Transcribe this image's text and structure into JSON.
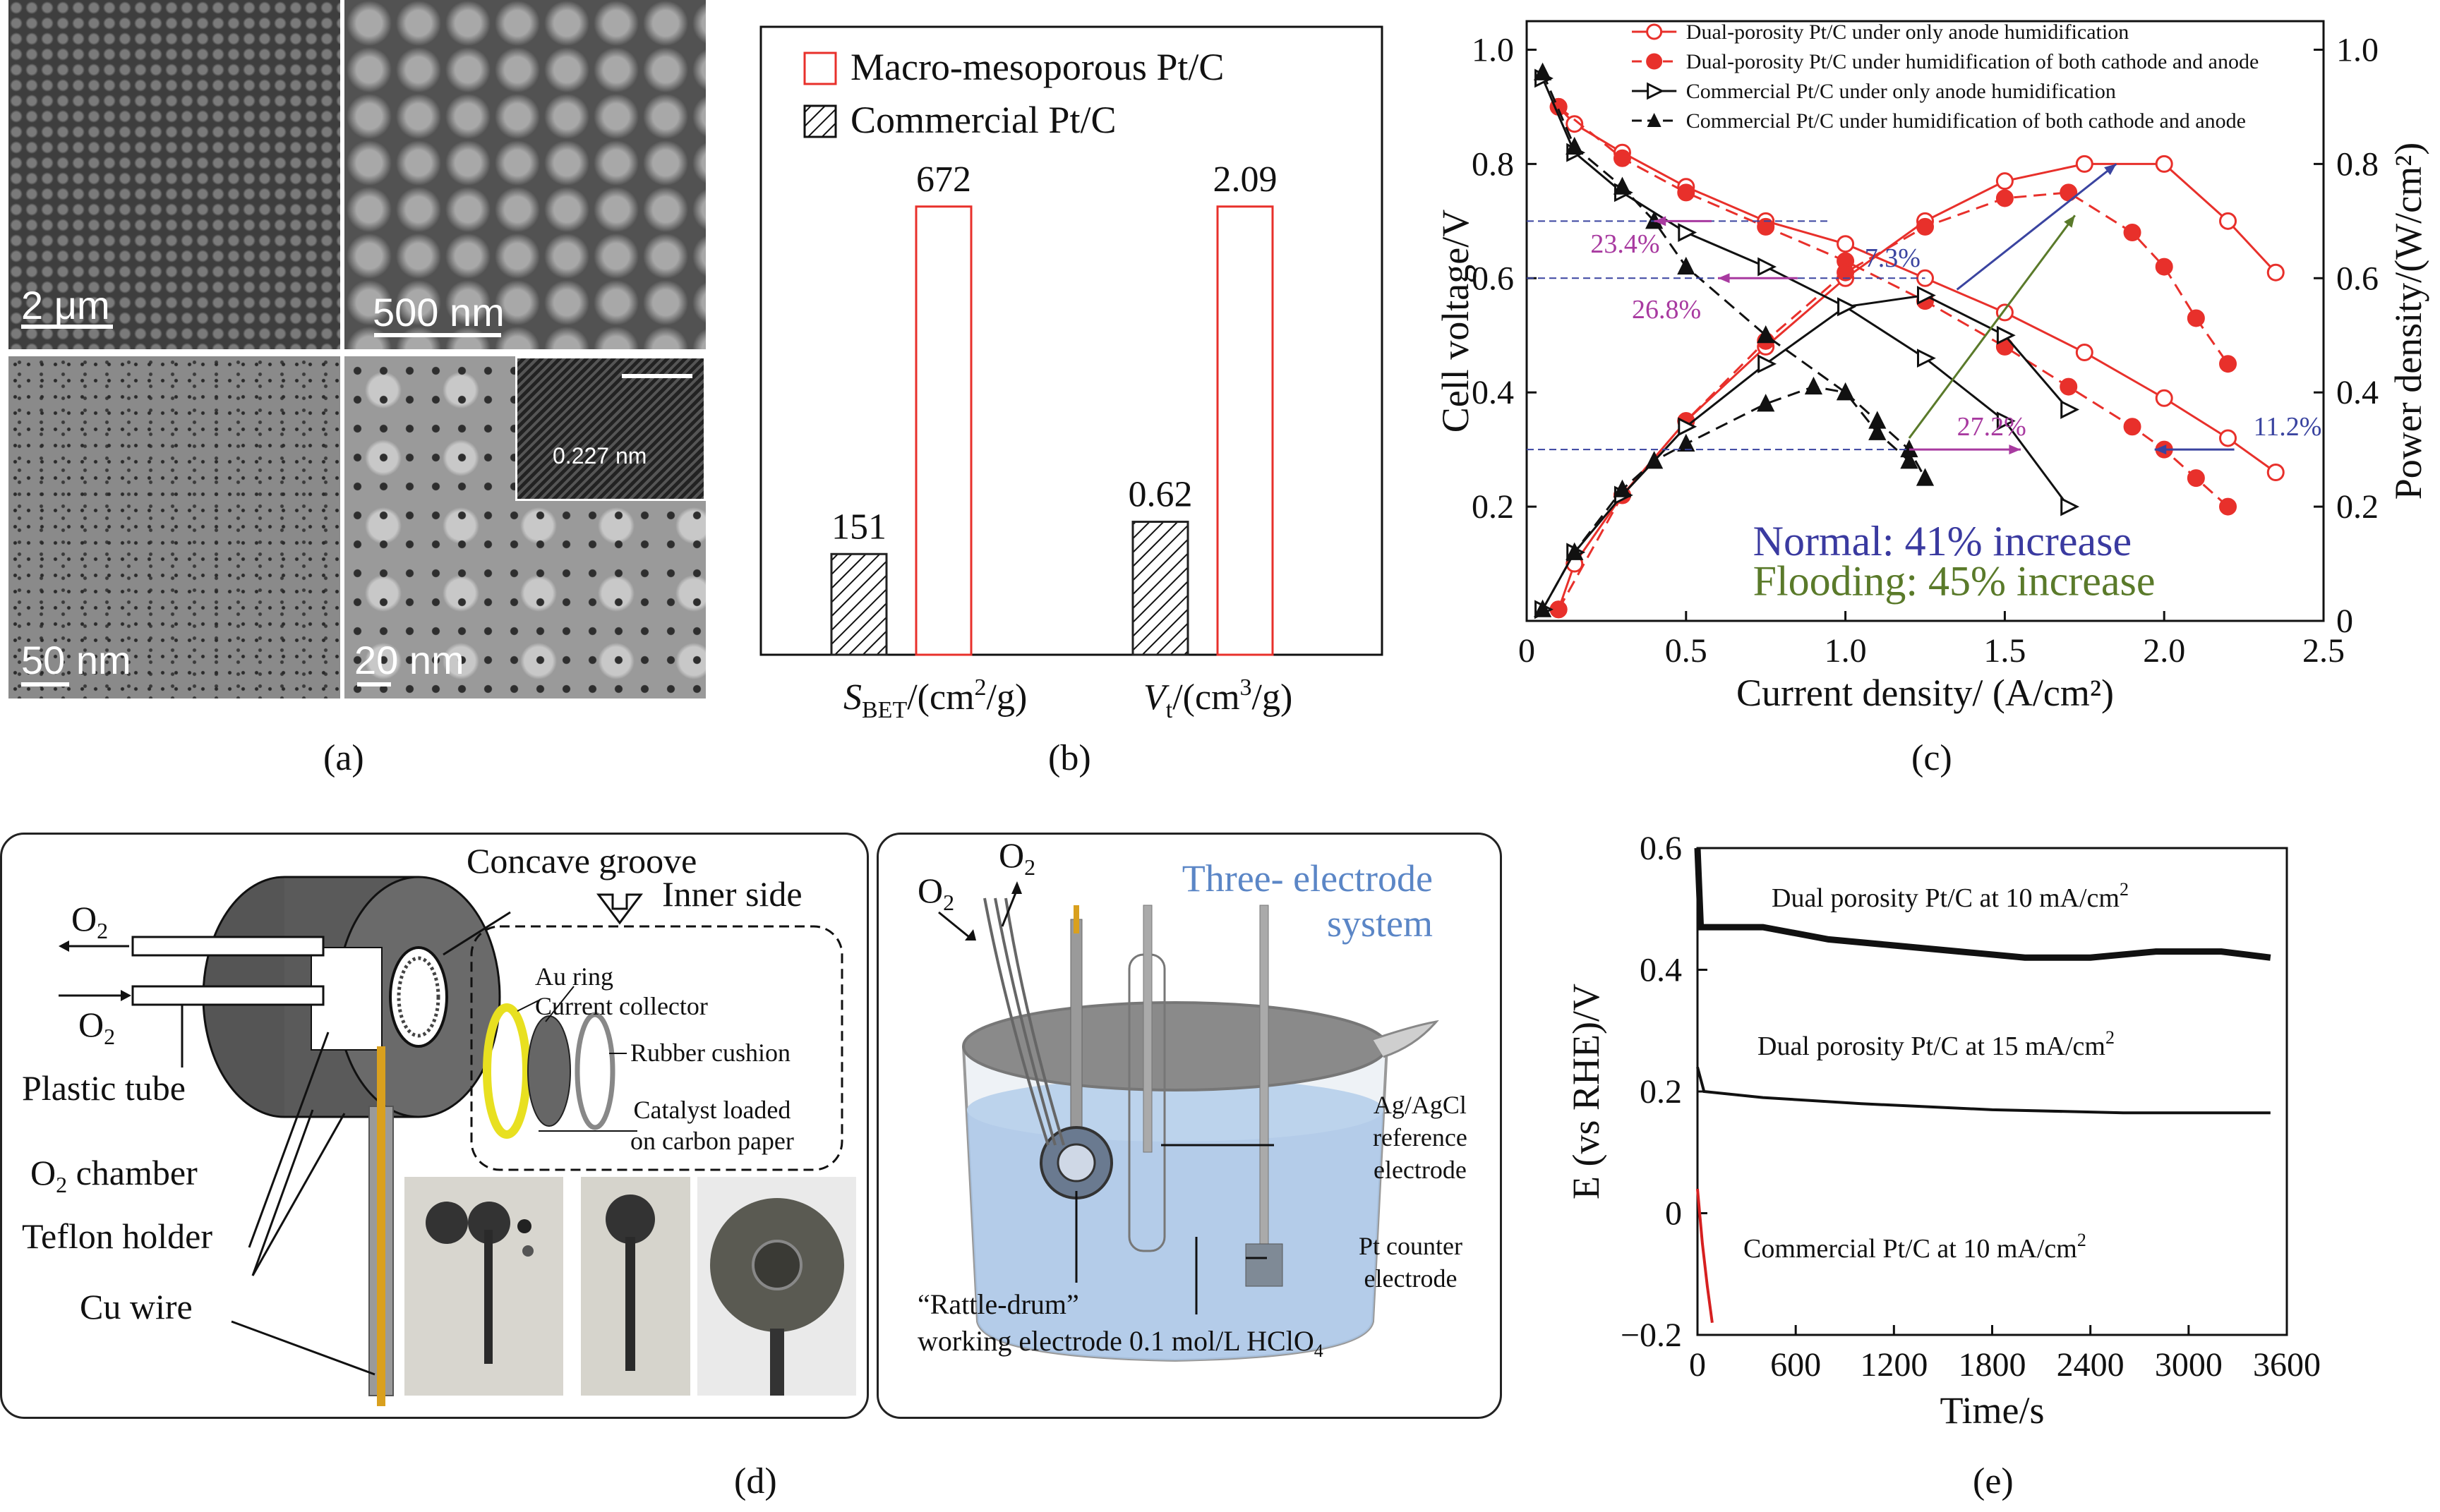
{
  "panel_labels": {
    "a": "(a)",
    "b": "(b)",
    "c": "(c)",
    "d": "(d)",
    "e": "(e)"
  },
  "panel_a": {
    "scales": [
      "2 μm",
      "500 nm",
      "50 nm",
      "20 nm"
    ],
    "inset_label": "0.227 nm"
  },
  "panel_d": {
    "left": {
      "concave_groove": "Concave groove",
      "inner_side": "Inner side",
      "o2_out": "O",
      "o2_in": "O",
      "o2_sub": "2",
      "plastic_tube": "Plastic tube",
      "o2_chamber_prefix": "O",
      "o2_chamber_suffix": " chamber",
      "teflon_holder": "Teflon holder",
      "cu_wire": "Cu wire",
      "au_ring": "Au ring",
      "current_collector": "Current collector",
      "rubber_cushion": "Rubber cushion",
      "catalyst_line1": "Catalyst loaded",
      "catalyst_line2": "on carbon paper"
    },
    "right": {
      "title_line1": "Three- electrode",
      "title_line2": "system",
      "o2_left": "O",
      "o2_right": "O",
      "agagcl_line1": "Ag/AgCl",
      "agagcl_line2": "reference",
      "agagcl_line3": "electrode",
      "pt_line1": "Pt counter",
      "pt_line2": "electrode",
      "rattle_line1": "“Rattle-drum”",
      "rattle_line2": "working electrode 0.1 mol/L HClO",
      "hclo_sub": "4"
    }
  },
  "chart_data": [
    {
      "id": "b",
      "type": "bar",
      "categories": [
        "S_BET/(cm2/g)",
        "Vt/(cm3/g)"
      ],
      "category_labels": [
        {
          "main": "S",
          "sub": "BET",
          "rest": "/(cm",
          "sup": "2",
          "end": "/g)"
        },
        {
          "main": "V",
          "sub": "t",
          "rest": "/(cm",
          "sup": "3",
          "end": "/g)"
        }
      ],
      "series": [
        {
          "name": "Commercial Pt/C",
          "values": [
            151,
            0.62
          ],
          "labels": [
            "151",
            "0.62"
          ],
          "style": "hatched",
          "color": "#222222"
        },
        {
          "name": "Macro-mesoporous Pt/C",
          "values": [
            672,
            2.09
          ],
          "labels": [
            "672",
            "2.09"
          ],
          "style": "outline",
          "color": "#e8302b"
        }
      ],
      "legend": "top-left"
    },
    {
      "id": "c",
      "type": "line",
      "xlabel": "Current density/ (A/cm²)",
      "ylabel_left": "Cell voltage/V",
      "ylabel_right": "Power density/(W/cm²)",
      "xlim": [
        0,
        2.5
      ],
      "ylim_left": [
        0,
        1.05
      ],
      "ylim_right": [
        0,
        1.05
      ],
      "xticks": [
        "0",
        "0.5",
        "1.0",
        "1.5",
        "2.0",
        "2.5"
      ],
      "yticks_left": [
        "0.2",
        "0.4",
        "0.6",
        "0.8",
        "1.0"
      ],
      "yticks_right": [
        "0",
        "0.2",
        "0.4",
        "0.6",
        "0.8",
        "1.0"
      ],
      "series": [
        {
          "name": "Dual-porosity Pt/C under only anode humidification",
          "color": "#e8302b",
          "marker": "open-circle",
          "dash": false,
          "polarization": [
            [
              0.1,
              0.9
            ],
            [
              0.15,
              0.87
            ],
            [
              0.3,
              0.82
            ],
            [
              0.5,
              0.76
            ],
            [
              0.75,
              0.7
            ],
            [
              1.0,
              0.66
            ],
            [
              1.25,
              0.6
            ],
            [
              1.5,
              0.54
            ],
            [
              1.75,
              0.47
            ],
            [
              2.0,
              0.39
            ],
            [
              2.2,
              0.32
            ],
            [
              2.35,
              0.26
            ]
          ],
          "power": [
            [
              0.1,
              0.02
            ],
            [
              0.15,
              0.1
            ],
            [
              0.3,
              0.22
            ],
            [
              0.5,
              0.35
            ],
            [
              0.75,
              0.48
            ],
            [
              1.0,
              0.6
            ],
            [
              1.25,
              0.7
            ],
            [
              1.5,
              0.77
            ],
            [
              1.75,
              0.8
            ],
            [
              2.0,
              0.8
            ],
            [
              2.2,
              0.7
            ],
            [
              2.35,
              0.61
            ]
          ]
        },
        {
          "name": "Dual-porosity Pt/C under humidification of both cathode and anode",
          "color": "#e8302b",
          "marker": "filled-circle",
          "dash": true,
          "polarization": [
            [
              0.1,
              0.9
            ],
            [
              0.3,
              0.81
            ],
            [
              0.5,
              0.75
            ],
            [
              0.75,
              0.69
            ],
            [
              1.0,
              0.63
            ],
            [
              1.25,
              0.56
            ],
            [
              1.5,
              0.48
            ],
            [
              1.7,
              0.41
            ],
            [
              1.9,
              0.34
            ],
            [
              2.0,
              0.3
            ],
            [
              2.1,
              0.25
            ],
            [
              2.2,
              0.2
            ]
          ],
          "power": [
            [
              0.1,
              0.02
            ],
            [
              0.3,
              0.22
            ],
            [
              0.5,
              0.35
            ],
            [
              0.75,
              0.49
            ],
            [
              1.0,
              0.61
            ],
            [
              1.25,
              0.69
            ],
            [
              1.5,
              0.74
            ],
            [
              1.7,
              0.75
            ],
            [
              1.9,
              0.68
            ],
            [
              2.0,
              0.62
            ],
            [
              2.1,
              0.53
            ],
            [
              2.2,
              0.45
            ]
          ]
        },
        {
          "name": "Commercial Pt/C under only anode humidification",
          "color": "#111111",
          "marker": "open-triangle",
          "dash": false,
          "polarization": [
            [
              0.05,
              0.95
            ],
            [
              0.15,
              0.82
            ],
            [
              0.3,
              0.75
            ],
            [
              0.5,
              0.68
            ],
            [
              0.75,
              0.62
            ],
            [
              1.0,
              0.55
            ],
            [
              1.25,
              0.46
            ],
            [
              1.5,
              0.35
            ],
            [
              1.7,
              0.2
            ]
          ],
          "power": [
            [
              0.05,
              0.02
            ],
            [
              0.15,
              0.12
            ],
            [
              0.3,
              0.22
            ],
            [
              0.5,
              0.34
            ],
            [
              0.75,
              0.45
            ],
            [
              1.0,
              0.55
            ],
            [
              1.25,
              0.57
            ],
            [
              1.5,
              0.5
            ],
            [
              1.7,
              0.37
            ]
          ]
        },
        {
          "name": "Commercial Pt/C under humidification of both cathode and anode",
          "color": "#111111",
          "marker": "filled-triangle",
          "dash": true,
          "polarization": [
            [
              0.05,
              0.96
            ],
            [
              0.15,
              0.83
            ],
            [
              0.3,
              0.76
            ],
            [
              0.4,
              0.7
            ],
            [
              0.5,
              0.62
            ],
            [
              0.75,
              0.5
            ],
            [
              1.0,
              0.4
            ],
            [
              1.1,
              0.33
            ],
            [
              1.2,
              0.28
            ]
          ],
          "power": [
            [
              0.05,
              0.02
            ],
            [
              0.15,
              0.12
            ],
            [
              0.3,
              0.23
            ],
            [
              0.4,
              0.28
            ],
            [
              0.5,
              0.31
            ],
            [
              0.75,
              0.38
            ],
            [
              0.9,
              0.41
            ],
            [
              1.0,
              0.4
            ],
            [
              1.1,
              0.35
            ],
            [
              1.2,
              0.3
            ],
            [
              1.25,
              0.25
            ]
          ]
        }
      ],
      "annotations": [
        {
          "text": "23.4%",
          "color": "#a83aa0"
        },
        {
          "text": "26.8%",
          "color": "#a83aa0"
        },
        {
          "text": "7.3%",
          "color": "#3a44a0"
        },
        {
          "text": "27.2%",
          "color": "#a83aa0"
        },
        {
          "text": "11.2%",
          "color": "#3a44a0"
        },
        {
          "text": "Normal: 41% increase",
          "color": "#3a3aa0"
        },
        {
          "text": "Flooding: 45% increase",
          "color": "#5a7a2a"
        }
      ],
      "legend": "top"
    },
    {
      "id": "e",
      "type": "line",
      "xlabel": "Time/s",
      "ylabel": "E (vs RHE)/V",
      "xlim": [
        0,
        3600
      ],
      "ylim": [
        -0.2,
        0.6
      ],
      "xticks": [
        "0",
        "600",
        "1200",
        "1800",
        "2400",
        "3000",
        "3600"
      ],
      "yticks": [
        "−0.2",
        "0",
        "0.2",
        "0.4",
        "0.6"
      ],
      "series": [
        {
          "name": "Dual porosity Pt/C at 10 mA/cm2",
          "color": "#111111",
          "points": [
            [
              0,
              0.6
            ],
            [
              20,
              0.47
            ],
            [
              200,
              0.47
            ],
            [
              400,
              0.47
            ],
            [
              800,
              0.45
            ],
            [
              1200,
              0.44
            ],
            [
              1600,
              0.43
            ],
            [
              2000,
              0.42
            ],
            [
              2400,
              0.42
            ],
            [
              2800,
              0.43
            ],
            [
              3200,
              0.43
            ],
            [
              3500,
              0.42
            ]
          ]
        },
        {
          "name": "Dual porosity Pt/C at 15 mA/cm2",
          "color": "#111111",
          "points": [
            [
              0,
              0.24
            ],
            [
              40,
              0.2
            ],
            [
              400,
              0.19
            ],
            [
              1000,
              0.18
            ],
            [
              1800,
              0.17
            ],
            [
              2600,
              0.165
            ],
            [
              3000,
              0.165
            ],
            [
              3500,
              0.165
            ]
          ]
        },
        {
          "name": "Commercial Pt/C at 10 mA/cm2",
          "color": "#d62020",
          "points": [
            [
              0,
              0.04
            ],
            [
              30,
              -0.05
            ],
            [
              60,
              -0.12
            ],
            [
              90,
              -0.18
            ]
          ]
        }
      ],
      "series_labels": [
        {
          "main": "Dual porosity Pt/C at 10 mA/cm",
          "sup": "2"
        },
        {
          "main": "Dual porosity Pt/C at 15 mA/cm",
          "sup": "2"
        },
        {
          "main": "Commercial Pt/C at 10 mA/cm",
          "sup": "2"
        }
      ]
    }
  ]
}
